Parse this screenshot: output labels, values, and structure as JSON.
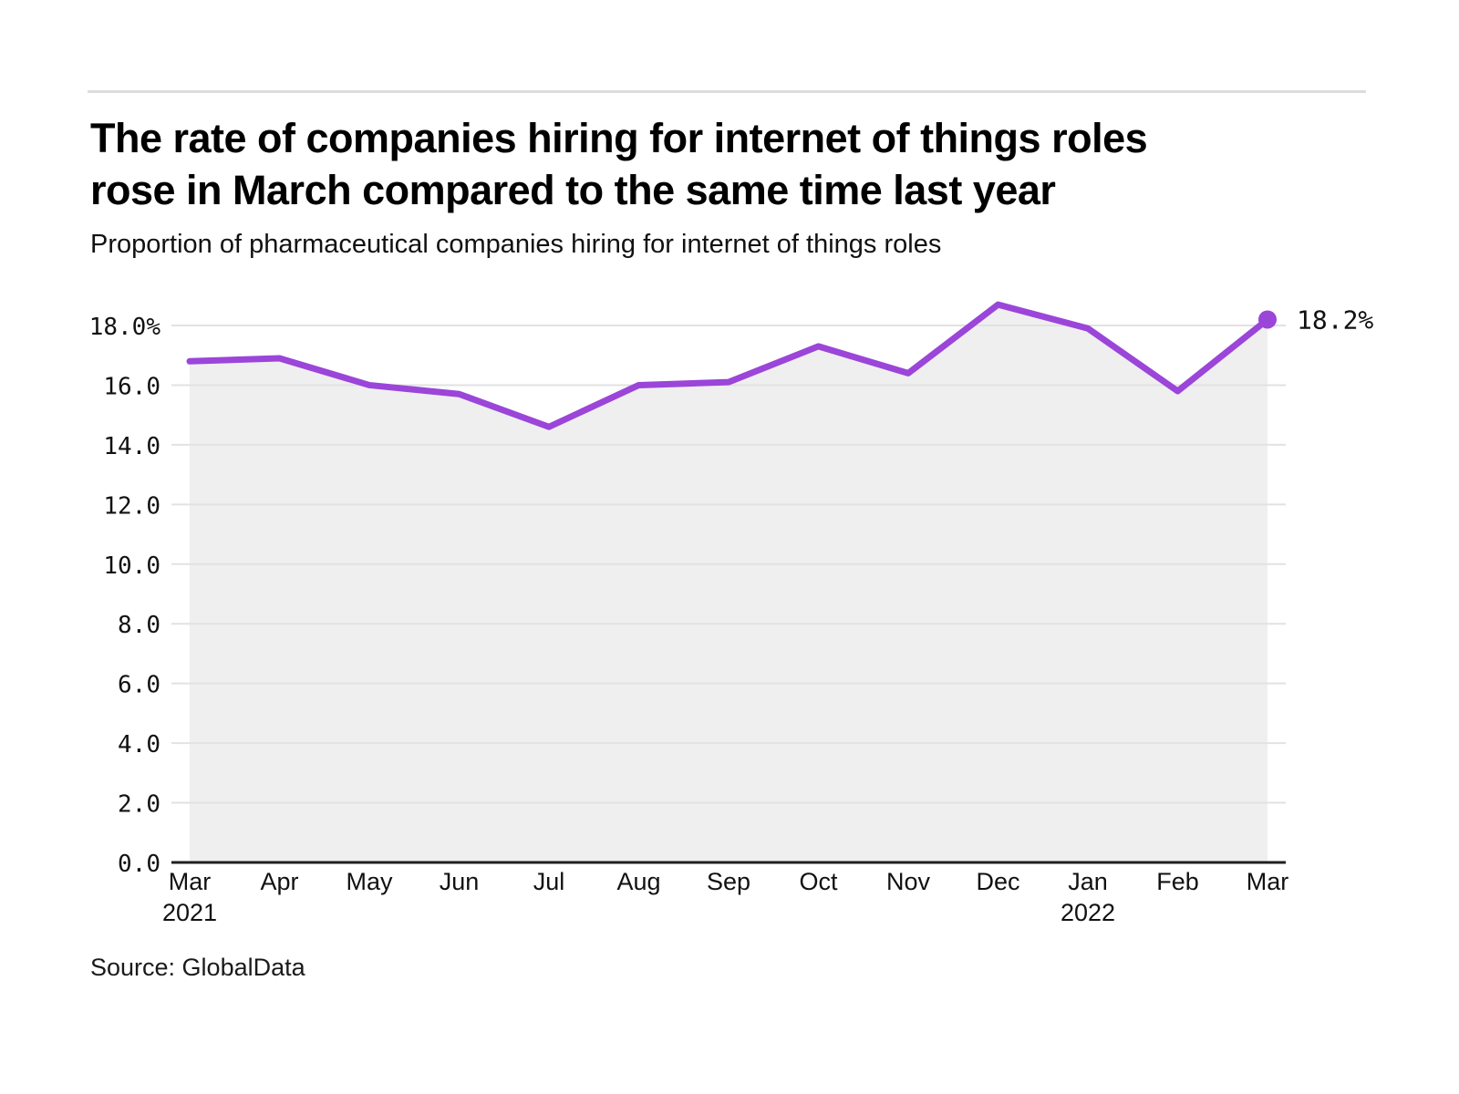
{
  "header": {
    "title_lines": [
      "The rate of companies hiring for internet of things roles",
      "rose in March compared to the same time last year"
    ],
    "subtitle": "Proportion of pharmaceutical companies hiring for internet of things roles"
  },
  "chart_data": {
    "type": "line",
    "title": "The rate of companies hiring for internet of things roles rose in March compared to the same time last year",
    "subtitle": "Proportion of pharmaceutical companies hiring for internet of things roles",
    "x_tick_labels": [
      "Mar",
      "Apr",
      "May",
      "Jun",
      "Jul",
      "Aug",
      "Sep",
      "Oct",
      "Nov",
      "Dec",
      "Jan",
      "Feb",
      "Mar"
    ],
    "x_year_labels": [
      {
        "tick_index": 0,
        "label": "2021"
      },
      {
        "tick_index": 10,
        "label": "2022"
      }
    ],
    "series": [
      {
        "name": "Proportion of pharmaceutical companies hiring for internet of things roles",
        "values": [
          16.8,
          16.9,
          16.0,
          15.7,
          14.6,
          16.0,
          16.1,
          17.3,
          16.4,
          18.7,
          17.9,
          15.8,
          18.2
        ]
      }
    ],
    "unit": "%",
    "end_point_label": "18.2%",
    "ylim": [
      0,
      19
    ],
    "yticks": [
      0,
      2,
      4,
      6,
      8,
      10,
      12,
      14,
      16,
      18
    ],
    "ytick_labels": [
      "0.0",
      "2.0",
      "4.0",
      "6.0",
      "8.0",
      "10.0",
      "12.0",
      "14.0",
      "16.0",
      "18.0%"
    ],
    "grid": "horizontal",
    "legend_position": "none",
    "colors": {
      "line": "#9b45d9",
      "area_fill": "#efefef",
      "gridline": "#e2e2e2",
      "axis": "#1f1f1f",
      "text": "#111111"
    }
  },
  "source": {
    "label": "Source: GlobalData"
  }
}
